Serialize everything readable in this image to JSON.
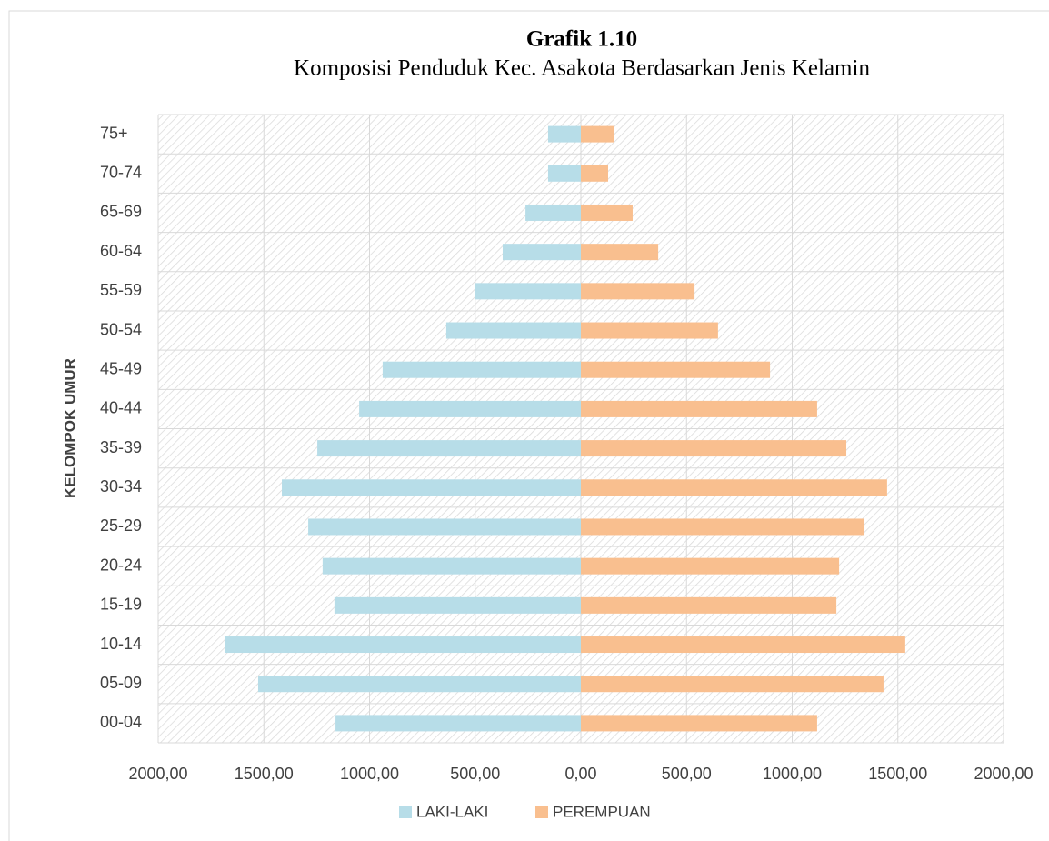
{
  "chart_data": {
    "type": "pyramid",
    "title": "Grafik 1.10",
    "subtitle": "Komposisi Penduduk Kec. Asakota Berdasarkan Jenis Kelamin",
    "y_label": "KELOMPOK UMUR",
    "categories": [
      "00-04",
      "05-09",
      "10-14",
      "15-19",
      "20-24",
      "25-29",
      "30-34",
      "35-39",
      "40-44",
      "45-49",
      "50-54",
      "55-59",
      "60-64",
      "65-69",
      "70-74",
      "75+"
    ],
    "series": [
      {
        "name": "LAKI-LAKI",
        "color": "#b7dde8",
        "values": [
          -1161,
          -1527,
          -1682,
          -1166,
          -1222,
          -1290,
          -1415,
          -1247,
          -1049,
          -938,
          -637,
          -503,
          -370,
          -262,
          -155,
          -155
        ]
      },
      {
        "name": "PEREMPUAN",
        "color": "#f9bf8f",
        "values": [
          1118,
          1432,
          1535,
          1209,
          1222,
          1342,
          1449,
          1256,
          1118,
          895,
          649,
          538,
          366,
          245,
          129,
          155
        ]
      }
    ],
    "xlim": [
      -2000,
      2000
    ],
    "xticks": [
      {
        "value": -2000,
        "label": "2000,00"
      },
      {
        "value": -1500,
        "label": "1500,00"
      },
      {
        "value": -1000,
        "label": "1000,00"
      },
      {
        "value": -500,
        "label": "500,00"
      },
      {
        "value": 0,
        "label": "0,00"
      },
      {
        "value": 500,
        "label": "500,00"
      },
      {
        "value": 1000,
        "label": "1000,00"
      },
      {
        "value": 1500,
        "label": "1500,00"
      },
      {
        "value": 2000,
        "label": "2000,00"
      }
    ],
    "grid": true,
    "legend": "bottom"
  }
}
